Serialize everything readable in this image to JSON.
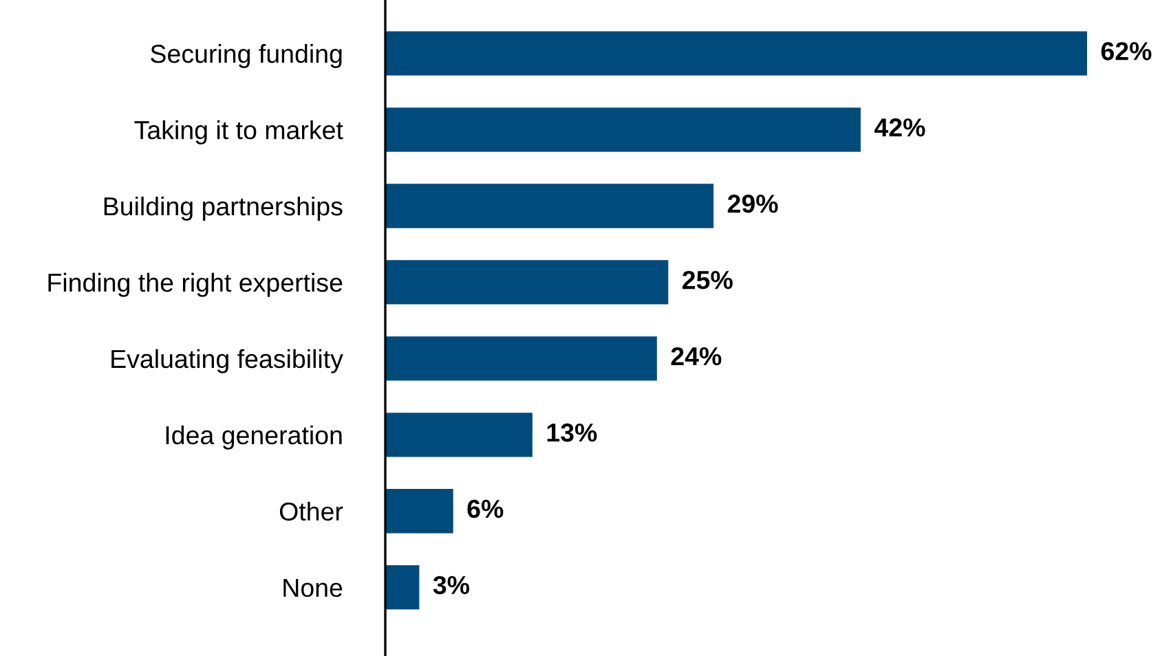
{
  "chart_data": {
    "type": "bar",
    "orientation": "horizontal",
    "categories": [
      "Securing funding",
      "Taking it to market",
      "Building partnerships",
      "Finding the right expertise",
      "Evaluating feasibility",
      "Idea generation",
      "Other",
      "None"
    ],
    "values": [
      62,
      42,
      29,
      25,
      24,
      13,
      6,
      3
    ],
    "value_labels": [
      "62%",
      "42%",
      "29%",
      "25%",
      "24%",
      "13%",
      "6%",
      "3%"
    ],
    "color": "#004b7c",
    "grid": false,
    "legend": false
  }
}
